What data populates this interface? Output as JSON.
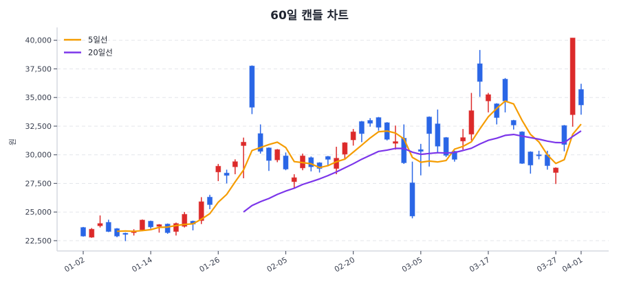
{
  "chart_data": {
    "type": "candlestick",
    "title": "60일 캔들 차트",
    "xlabel": "",
    "ylabel": "원",
    "ylim": [
      21600,
      40700
    ],
    "yticks": [
      22500,
      25000,
      27500,
      30000,
      32500,
      35000,
      37500,
      40000
    ],
    "ytick_labels": [
      "22,500",
      "25,000",
      "27,500",
      "30,000",
      "32,500",
      "35,000",
      "37,500",
      "40,000"
    ],
    "xticks": [
      {
        "index": 0,
        "label": "01-02"
      },
      {
        "index": 8,
        "label": "01-14"
      },
      {
        "index": 16,
        "label": "01-26"
      },
      {
        "index": 24,
        "label": "02-05"
      },
      {
        "index": 32,
        "label": "02-20"
      },
      {
        "index": 40,
        "label": "03-05"
      },
      {
        "index": 48,
        "label": "03-17"
      },
      {
        "index": 56,
        "label": "03-27"
      },
      {
        "index": 59,
        "label": "04-01"
      }
    ],
    "grid": true,
    "legend_position": "top-left",
    "legend": [
      {
        "label": "5일선",
        "period": 5,
        "color": "#f59c00"
      },
      {
        "label": "20일선",
        "period": 20,
        "color": "#7b35ea"
      }
    ],
    "colors": {
      "up": "#dc2a2a",
      "down": "#2a66e6",
      "axis": "#d5d9e0",
      "grid": "#e3e5ea"
    },
    "ohlc": [
      [
        23650,
        23700,
        22850,
        22900
      ],
      [
        22800,
        23600,
        22750,
        23500
      ],
      [
        23800,
        24700,
        23650,
        24000
      ],
      [
        24100,
        24330,
        23250,
        23300
      ],
      [
        23550,
        23600,
        22800,
        22900
      ],
      [
        23150,
        23200,
        22460,
        23050
      ],
      [
        23200,
        23500,
        22950,
        23350
      ],
      [
        23450,
        24350,
        23350,
        24300
      ],
      [
        24200,
        24250,
        23550,
        23700
      ],
      [
        23750,
        23950,
        23200,
        23900
      ],
      [
        23950,
        24000,
        23100,
        23200
      ],
      [
        23300,
        24080,
        22950,
        24000
      ],
      [
        23750,
        25000,
        23650,
        24800
      ],
      [
        24200,
        24250,
        23400,
        23950
      ],
      [
        24250,
        26300,
        23950,
        25900
      ],
      [
        26300,
        26500,
        25250,
        25650
      ],
      [
        28500,
        29200,
        27700,
        29000
      ],
      [
        28400,
        28700,
        27500,
        28200
      ],
      [
        28950,
        29600,
        28300,
        29400
      ],
      [
        30800,
        31500,
        27950,
        31100
      ],
      [
        37750,
        37800,
        33550,
        34150
      ],
      [
        31850,
        32650,
        30100,
        30300
      ],
      [
        30600,
        30650,
        28590,
        29500
      ],
      [
        29550,
        30500,
        29350,
        30450
      ],
      [
        29900,
        30200,
        28650,
        28750
      ],
      [
        27650,
        28300,
        27100,
        28000
      ],
      [
        28850,
        30100,
        28650,
        29900
      ],
      [
        29750,
        29850,
        28550,
        28950
      ],
      [
        29300,
        29350,
        28450,
        28800
      ],
      [
        29850,
        29900,
        29100,
        29600
      ],
      [
        28800,
        30700,
        28300,
        29700
      ],
      [
        30050,
        31100,
        29600,
        31050
      ],
      [
        31300,
        32250,
        30800,
        32000
      ],
      [
        32900,
        32950,
        31100,
        31850
      ],
      [
        33000,
        33200,
        32450,
        32750
      ],
      [
        33250,
        33300,
        32100,
        32400
      ],
      [
        32800,
        32850,
        31250,
        31350
      ],
      [
        31000,
        32550,
        30450,
        31150
      ],
      [
        31450,
        32650,
        29200,
        29300
      ],
      [
        27550,
        29400,
        24450,
        24650
      ],
      [
        30450,
        30950,
        28200,
        30300
      ],
      [
        33300,
        33350,
        28970,
        31850
      ],
      [
        32700,
        33950,
        30150,
        30750
      ],
      [
        31500,
        31550,
        29800,
        29950
      ],
      [
        30300,
        30350,
        29400,
        29600
      ],
      [
        31200,
        32250,
        30450,
        31500
      ],
      [
        31800,
        35400,
        31250,
        33850
      ],
      [
        37950,
        39150,
        35060,
        36400
      ],
      [
        34700,
        35400,
        33700,
        35250
      ],
      [
        34450,
        34500,
        32650,
        33250
      ],
      [
        36600,
        36700,
        33700,
        34700
      ],
      [
        33000,
        33050,
        32200,
        32600
      ],
      [
        32000,
        32050,
        29200,
        29250
      ],
      [
        30250,
        30300,
        28350,
        29100
      ],
      [
        30000,
        30350,
        29600,
        29950
      ],
      [
        30000,
        30350,
        28700,
        29050
      ],
      [
        28450,
        28900,
        27450,
        28850
      ],
      [
        32550,
        32600,
        30300,
        30900
      ],
      [
        33500,
        40200,
        32450,
        40200
      ],
      [
        35700,
        36200,
        33500,
        34350
      ]
    ]
  }
}
